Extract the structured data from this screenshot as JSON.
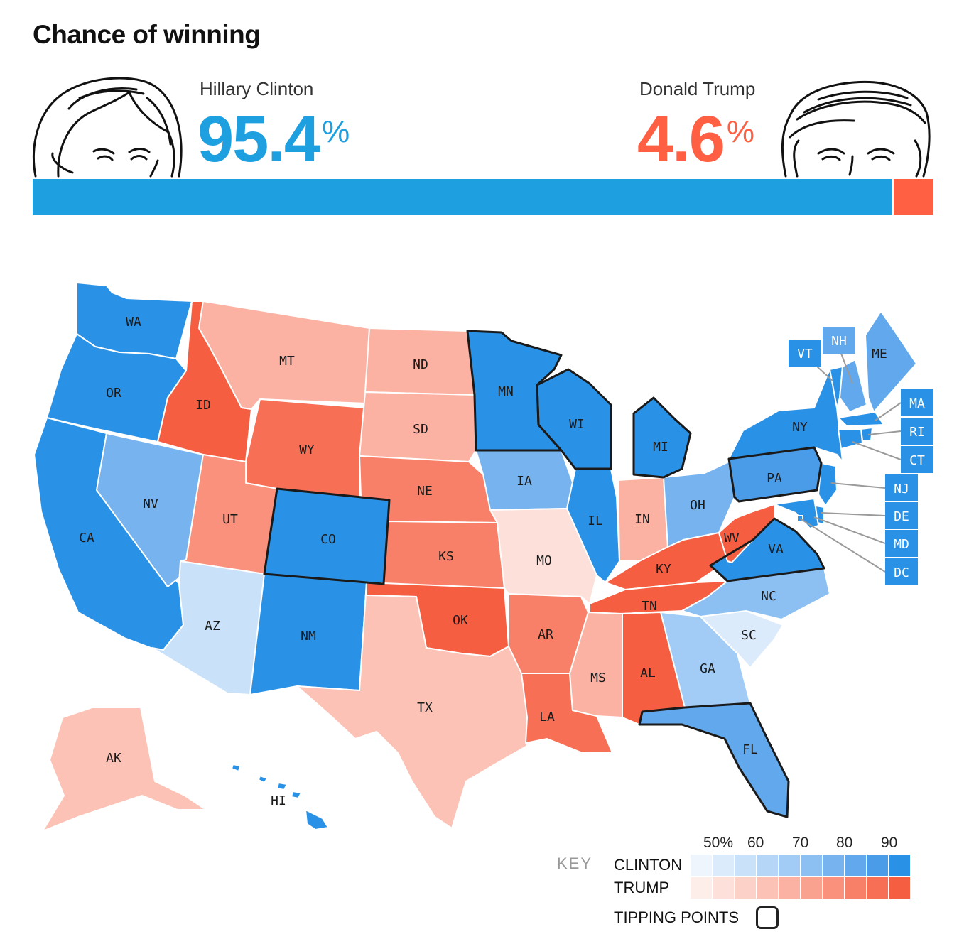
{
  "header": {
    "title": "Chance of winning"
  },
  "candidates": [
    {
      "name": "Hillary Clinton",
      "pct": "95.4",
      "pct_sign": "%",
      "color": "#1d9fe0"
    },
    {
      "name": "Donald Trump",
      "pct": "4.6",
      "pct_sign": "%",
      "color": "#ff5f43"
    }
  ],
  "bar": {
    "clinton_share": 0.954,
    "trump_share": 0.046,
    "clinton_color": "#1d9fe0",
    "trump_color": "#ff5f43"
  },
  "states": [
    {
      "abbr": "WA",
      "party": "clinton",
      "bin": 9
    },
    {
      "abbr": "OR",
      "party": "clinton",
      "bin": 9
    },
    {
      "abbr": "CA",
      "party": "clinton",
      "bin": 9
    },
    {
      "abbr": "NV",
      "party": "clinton",
      "bin": 6
    },
    {
      "abbr": "ID",
      "party": "trump",
      "bin": 9
    },
    {
      "abbr": "MT",
      "party": "trump",
      "bin": 4
    },
    {
      "abbr": "WY",
      "party": "trump",
      "bin": 8
    },
    {
      "abbr": "UT",
      "party": "trump",
      "bin": 6
    },
    {
      "abbr": "AZ",
      "party": "clinton",
      "bin": 2
    },
    {
      "abbr": "CO",
      "party": "clinton",
      "bin": 9,
      "tipping": true
    },
    {
      "abbr": "NM",
      "party": "clinton",
      "bin": 9
    },
    {
      "abbr": "ND",
      "party": "trump",
      "bin": 4
    },
    {
      "abbr": "SD",
      "party": "trump",
      "bin": 4
    },
    {
      "abbr": "NE",
      "party": "trump",
      "bin": 7
    },
    {
      "abbr": "KS",
      "party": "trump",
      "bin": 7
    },
    {
      "abbr": "OK",
      "party": "trump",
      "bin": 9
    },
    {
      "abbr": "TX",
      "party": "trump",
      "bin": 3
    },
    {
      "abbr": "MN",
      "party": "clinton",
      "bin": 9,
      "tipping": true
    },
    {
      "abbr": "IA",
      "party": "clinton",
      "bin": 6
    },
    {
      "abbr": "MO",
      "party": "trump",
      "bin": 1
    },
    {
      "abbr": "AR",
      "party": "trump",
      "bin": 7
    },
    {
      "abbr": "LA",
      "party": "trump",
      "bin": 8
    },
    {
      "abbr": "WI",
      "party": "clinton",
      "bin": 9,
      "tipping": true
    },
    {
      "abbr": "IL",
      "party": "clinton",
      "bin": 9
    },
    {
      "abbr": "MI",
      "party": "clinton",
      "bin": 9,
      "tipping": true
    },
    {
      "abbr": "IN",
      "party": "trump",
      "bin": 4
    },
    {
      "abbr": "OH",
      "party": "clinton",
      "bin": 6
    },
    {
      "abbr": "KY",
      "party": "trump",
      "bin": 9
    },
    {
      "abbr": "TN",
      "party": "trump",
      "bin": 9
    },
    {
      "abbr": "MS",
      "party": "trump",
      "bin": 4
    },
    {
      "abbr": "AL",
      "party": "trump",
      "bin": 9
    },
    {
      "abbr": "GA",
      "party": "clinton",
      "bin": 4
    },
    {
      "abbr": "FL",
      "party": "clinton",
      "bin": 7,
      "tipping": true
    },
    {
      "abbr": "SC",
      "party": "clinton",
      "bin": 1
    },
    {
      "abbr": "NC",
      "party": "clinton",
      "bin": 5
    },
    {
      "abbr": "VA",
      "party": "clinton",
      "bin": 9,
      "tipping": true
    },
    {
      "abbr": "WV",
      "party": "trump",
      "bin": 9
    },
    {
      "abbr": "PA",
      "party": "clinton",
      "bin": 8,
      "tipping": true
    },
    {
      "abbr": "NY",
      "party": "clinton",
      "bin": 9
    },
    {
      "abbr": "ME",
      "party": "clinton",
      "bin": 7
    },
    {
      "abbr": "AK",
      "party": "trump",
      "bin": 3
    },
    {
      "abbr": "HI",
      "party": "clinton",
      "bin": 9
    },
    {
      "abbr": "VT",
      "party": "clinton",
      "bin": 9
    },
    {
      "abbr": "NH",
      "party": "clinton",
      "bin": 7
    },
    {
      "abbr": "MA",
      "party": "clinton",
      "bin": 9
    },
    {
      "abbr": "RI",
      "party": "clinton",
      "bin": 9
    },
    {
      "abbr": "CT",
      "party": "clinton",
      "bin": 9
    },
    {
      "abbr": "NJ",
      "party": "clinton",
      "bin": 9
    },
    {
      "abbr": "DE",
      "party": "clinton",
      "bin": 9
    },
    {
      "abbr": "MD",
      "party": "clinton",
      "bin": 9
    },
    {
      "abbr": "DC",
      "party": "clinton",
      "bin": 9
    }
  ],
  "key": {
    "label": "KEY",
    "ticks": [
      "50%",
      "60",
      "70",
      "80",
      "90"
    ],
    "clinton_label": "CLINTON",
    "trump_label": "TRUMP",
    "tipping_label": "TIPPING POINTS",
    "clinton_colors": [
      "#eef5fd",
      "#dcebfb",
      "#c9e1f9",
      "#b5d6f7",
      "#a2ccf5",
      "#8cc0f2",
      "#77b4ef",
      "#61a8ec",
      "#4a9ce9",
      "#2a92e6"
    ],
    "trump_colors": [
      "#fdeeea",
      "#fde0d9",
      "#fcd1c7",
      "#fcc2b5",
      "#fbb2a3",
      "#faa290",
      "#f9917c",
      "#f88068",
      "#f76f55",
      "#f65e42"
    ]
  }
}
